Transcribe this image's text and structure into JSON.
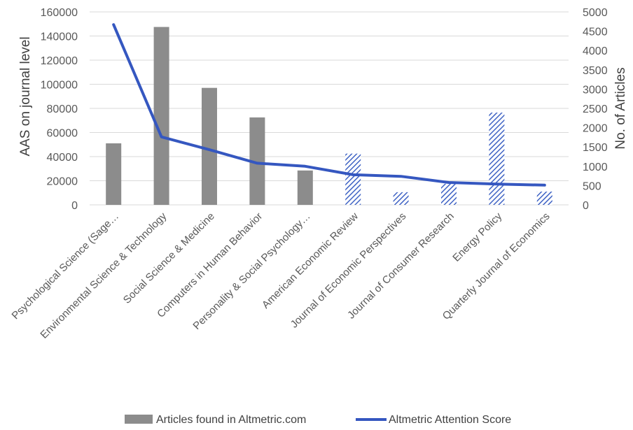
{
  "chart_data": {
    "type": "bar",
    "categories": [
      "Psychological Science (Sage…",
      "Environmental Science & Technology",
      "Social Science & Medicine",
      "Computers in Human Behavior",
      "Personality & Social Psychology…",
      "American Economic Review",
      "Journal of Economic Perspectives",
      "Journal of Consumer Research",
      "Energy Policy",
      "Quarterly Journal of Economics"
    ],
    "series": [
      {
        "name": "Articles found in Altmetric.com",
        "type": "bar",
        "axis": "left",
        "values": [
          51000,
          147500,
          97000,
          72500,
          28500,
          42500,
          10500,
          17500,
          76500,
          11000
        ],
        "pattern": [
          "solid",
          "solid",
          "solid",
          "solid",
          "solid",
          "hatched",
          "hatched",
          "hatched",
          "hatched",
          "hatched"
        ]
      },
      {
        "name": "Altmetric Attention Score",
        "type": "line",
        "axis": "right",
        "values": [
          4670,
          1760,
          1430,
          1080,
          1000,
          780,
          740,
          580,
          540,
          510
        ]
      }
    ],
    "ylabel": "AAS on journal level",
    "y2label": "No. of Articles",
    "ylim": [
      0,
      160000
    ],
    "y2lim": [
      0,
      5000
    ],
    "yticks": [
      "0",
      "20000",
      "40000",
      "60000",
      "80000",
      "100000",
      "120000",
      "140000",
      "160000"
    ],
    "y2ticks": [
      "0",
      "500",
      "1000",
      "1500",
      "2000",
      "2500",
      "3000",
      "3500",
      "4000",
      "4500",
      "5000"
    ],
    "grid": true,
    "legend": "bottom",
    "colors": {
      "bar_solid": "#8c8c8c",
      "bar_hatch": "#3f63c4",
      "line": "#3557c0",
      "grid": "#d9d9d9",
      "axis_text": "#595959"
    }
  }
}
